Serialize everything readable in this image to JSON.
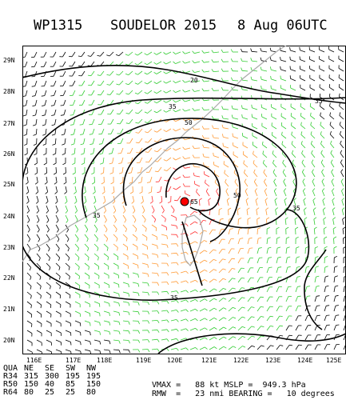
{
  "title": {
    "storm_id": "WP1315",
    "storm_name": "SOUDELOR 2015",
    "datetime": "8 Aug 06UTC"
  },
  "latitudes": [
    "29N",
    "28N",
    "27N",
    "26N",
    "25N",
    "24N",
    "23N",
    "22N",
    "21N",
    "20N"
  ],
  "longitudes": [
    "116E",
    "117E",
    "118E",
    "119E",
    "120E",
    "121E",
    "122E",
    "123E",
    "124E",
    "125E"
  ],
  "contour_labels": [
    "20",
    "35",
    "50",
    "65",
    "50",
    "35",
    "35",
    "35"
  ],
  "wind_radii_table": {
    "header": [
      "QUA",
      "NE",
      "SE",
      "SW",
      "NW"
    ],
    "rows": [
      [
        "R34",
        "315",
        "300",
        "195",
        "195"
      ],
      [
        "R50",
        "150",
        "40",
        "85",
        "150"
      ],
      [
        "R64",
        "80",
        "25",
        "25",
        "80"
      ]
    ]
  },
  "stats": {
    "line1": "VMAX =   88 kt MSLP =  949.3 hPa",
    "line2": "RMW  =   23 nmi BEARING =   10 degrees"
  },
  "colors": {
    "land": "#aaaaaa",
    "barb_low": "#000000",
    "barb_34": "#33cc33",
    "barb_50": "#ff9933",
    "barb_64": "#ff3333",
    "center": "#ff0000"
  }
}
